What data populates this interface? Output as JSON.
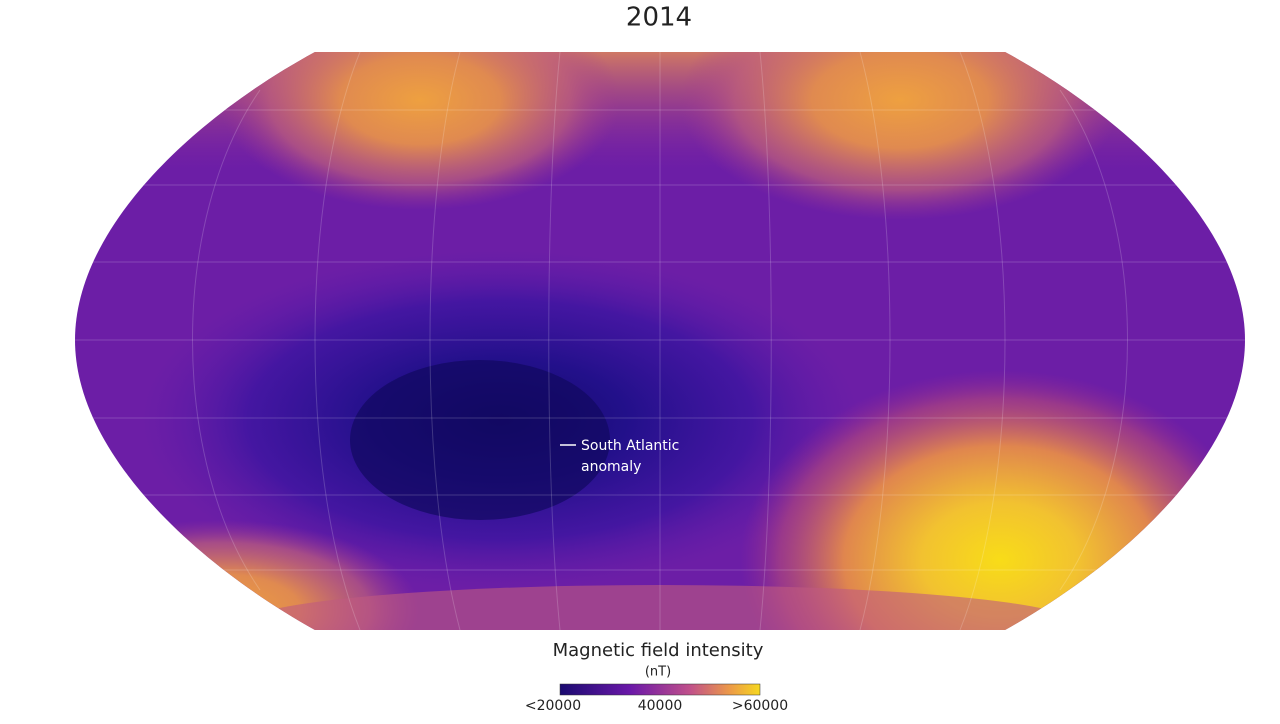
{
  "title": "2014",
  "annotation": {
    "lines": [
      "South Atlantic",
      "anomaly"
    ]
  },
  "legend": {
    "title": "Magnetic field intensity",
    "unit": "(nT)",
    "ticks": [
      "<20000",
      "40000",
      ">60000"
    ]
  }
}
